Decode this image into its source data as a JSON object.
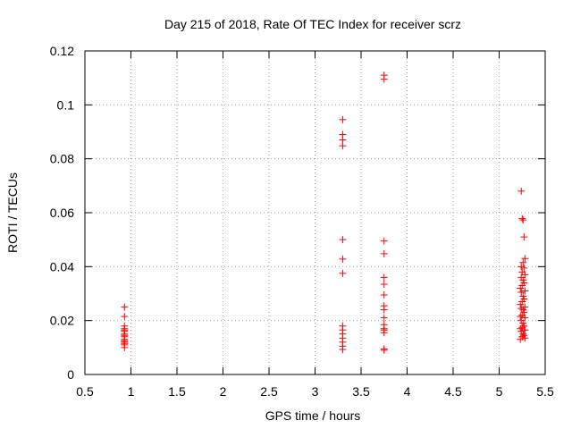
{
  "chart_data": {
    "type": "scatter",
    "title": "Day 215 of 2018, Rate Of TEC Index for receiver scrz",
    "xlabel": "GPS time / hours",
    "ylabel": "ROTI / TECUs",
    "xlim": [
      0.5,
      5.5
    ],
    "ylim": [
      0,
      0.12
    ],
    "xticks": [
      0.5,
      1,
      1.5,
      2,
      2.5,
      3,
      3.5,
      4,
      4.5,
      5,
      5.5
    ],
    "xtick_labels": [
      "0.5",
      "1",
      "1.5",
      "2",
      "2.5",
      "3",
      "3.5",
      "4",
      "4.5",
      "5",
      "5.5"
    ],
    "yticks": [
      0,
      0.02,
      0.04,
      0.06,
      0.08,
      0.1,
      0.12
    ],
    "ytick_labels": [
      "0",
      "0.02",
      "0.04",
      "0.06",
      "0.08",
      "0.1",
      "0.12"
    ],
    "grid": true,
    "marker": "+",
    "marker_color": "#ff0000",
    "series": [
      {
        "name": "ROTI",
        "points": [
          [
            0.93,
            0.025
          ],
          [
            0.93,
            0.0215
          ],
          [
            0.93,
            0.018
          ],
          [
            0.93,
            0.017
          ],
          [
            0.93,
            0.0165
          ],
          [
            0.93,
            0.016
          ],
          [
            0.93,
            0.015
          ],
          [
            0.93,
            0.0145
          ],
          [
            0.93,
            0.014
          ],
          [
            0.93,
            0.013
          ],
          [
            0.93,
            0.0125
          ],
          [
            0.93,
            0.012
          ],
          [
            0.93,
            0.0115
          ],
          [
            0.93,
            0.011
          ],
          [
            0.93,
            0.01
          ],
          [
            3.3,
            0.0945
          ],
          [
            3.3,
            0.089
          ],
          [
            3.3,
            0.087
          ],
          [
            3.3,
            0.0848
          ],
          [
            3.3,
            0.05
          ],
          [
            3.3,
            0.0428
          ],
          [
            3.3,
            0.0375
          ],
          [
            3.3,
            0.018
          ],
          [
            3.3,
            0.0165
          ],
          [
            3.3,
            0.015
          ],
          [
            3.3,
            0.0135
          ],
          [
            3.3,
            0.012
          ],
          [
            3.3,
            0.0105
          ],
          [
            3.3,
            0.0093
          ],
          [
            3.75,
            0.111
          ],
          [
            3.75,
            0.1095
          ],
          [
            3.75,
            0.0495
          ],
          [
            3.75,
            0.0448
          ],
          [
            3.75,
            0.036
          ],
          [
            3.75,
            0.0335
          ],
          [
            3.75,
            0.0295
          ],
          [
            3.75,
            0.0255
          ],
          [
            3.75,
            0.024
          ],
          [
            3.75,
            0.021
          ],
          [
            3.75,
            0.0185
          ],
          [
            3.75,
            0.017
          ],
          [
            3.75,
            0.0165
          ],
          [
            3.75,
            0.0155
          ],
          [
            3.75,
            0.0095
          ],
          [
            3.75,
            0.009
          ],
          [
            5.24,
            0.068
          ],
          [
            5.25,
            0.0578
          ],
          [
            5.26,
            0.0573
          ],
          [
            5.27,
            0.051
          ],
          [
            5.28,
            0.043
          ],
          [
            5.26,
            0.0415
          ],
          [
            5.24,
            0.04
          ],
          [
            5.27,
            0.0395
          ],
          [
            5.25,
            0.038
          ],
          [
            5.28,
            0.037
          ],
          [
            5.24,
            0.036
          ],
          [
            5.26,
            0.035
          ],
          [
            5.27,
            0.034
          ],
          [
            5.25,
            0.033
          ],
          [
            5.23,
            0.032
          ],
          [
            5.28,
            0.031
          ],
          [
            5.24,
            0.0305
          ],
          [
            5.26,
            0.029
          ],
          [
            5.27,
            0.028
          ],
          [
            5.25,
            0.027
          ],
          [
            5.23,
            0.026
          ],
          [
            5.28,
            0.025
          ],
          [
            5.24,
            0.0245
          ],
          [
            5.26,
            0.024
          ],
          [
            5.27,
            0.023
          ],
          [
            5.25,
            0.022
          ],
          [
            5.23,
            0.0215
          ],
          [
            5.28,
            0.021
          ],
          [
            5.24,
            0.02
          ],
          [
            5.26,
            0.019
          ],
          [
            5.27,
            0.018
          ],
          [
            5.25,
            0.0175
          ],
          [
            5.23,
            0.017
          ],
          [
            5.28,
            0.0165
          ],
          [
            5.24,
            0.016
          ],
          [
            5.26,
            0.015
          ],
          [
            5.27,
            0.0145
          ],
          [
            5.25,
            0.014
          ],
          [
            5.23,
            0.013
          ],
          [
            5.28,
            0.0135
          ]
        ]
      }
    ]
  }
}
